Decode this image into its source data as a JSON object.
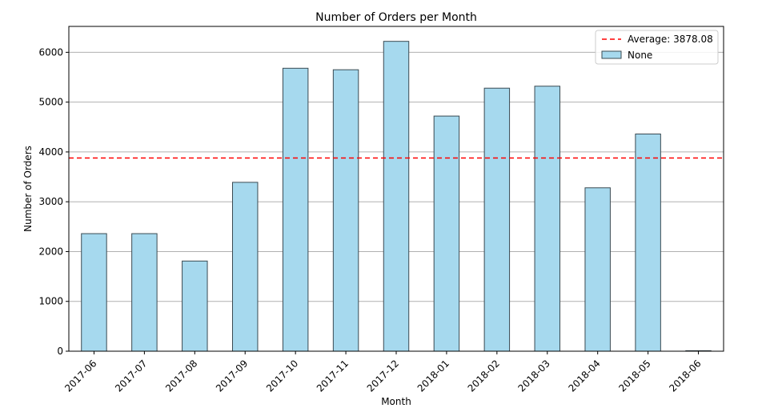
{
  "chart_data": {
    "type": "bar",
    "title": "Number of Orders per Month",
    "xlabel": "Month",
    "ylabel": "Number of Orders",
    "categories": [
      "2017-06",
      "2017-07",
      "2017-08",
      "2017-09",
      "2017-10",
      "2017-11",
      "2017-12",
      "2018-01",
      "2018-02",
      "2018-03",
      "2018-04",
      "2018-05",
      "2018-06"
    ],
    "series": [
      {
        "name": "None",
        "values": [
          2360,
          2360,
          1810,
          3390,
          5680,
          5650,
          6220,
          4720,
          5280,
          5320,
          3280,
          4360,
          10
        ]
      }
    ],
    "ylim": [
      0,
      6520
    ],
    "yticks": [
      0,
      1000,
      2000,
      3000,
      4000,
      5000,
      6000
    ],
    "reference_line": {
      "label": "Average: 3878.08",
      "value": 3878.08,
      "color": "#ff0000",
      "style": "dashed"
    },
    "grid": {
      "y": true,
      "x": false
    },
    "legend_position": "top-right",
    "colors": {
      "bar_fill": "#a6d9ee",
      "bar_edge": "#3a4a52",
      "grid": "#b0b0b0"
    }
  }
}
